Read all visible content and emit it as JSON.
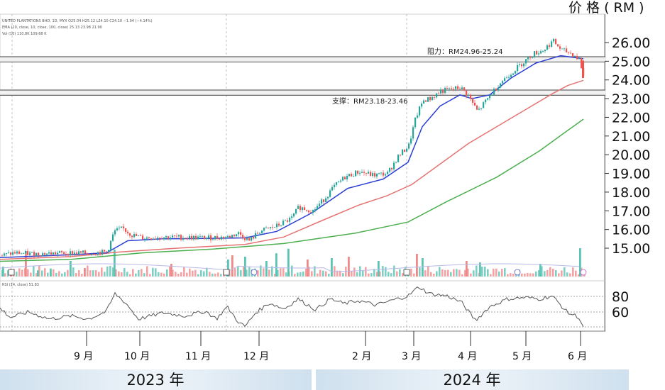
{
  "chart_data": {
    "type": "candlestick",
    "y_axis_title": "价 格 ( RM )",
    "price_ticks": [
      "26.00",
      "25.00",
      "24.00",
      "23.00",
      "22.00",
      "21.00",
      "20.00",
      "19.00",
      "18.00",
      "17.00",
      "16.00",
      "15.00"
    ],
    "ylim": [
      14.2,
      26.4
    ],
    "rsi_ticks": [
      "80",
      "60"
    ],
    "months": [
      "9 月",
      "10 月",
      "11 月",
      "12 月",
      "2 月",
      "3 月",
      "4 月",
      "5 月",
      "6 月"
    ],
    "years": [
      "2023 年",
      "2024 年"
    ],
    "resistance": {
      "label": "阻力：RM24.96-25.24",
      "low": 24.96,
      "high": 25.24
    },
    "support": {
      "label": "支撑：RM23.18-23.46",
      "low": 23.18,
      "high": 23.46
    },
    "header_lines": [
      "UNITED PLANTATIONS BHD, 1D, MYX  O25.04 H25.12 L24.10 C24.10 −1.04 (−4.14%)",
      "EMA (20, close, 10, close, 100, close)  25.13  23.98  21.90",
      "Vol (10)  110.8K  109.68 K"
    ],
    "rsi_header": "RSI (14, close)  51.83",
    "price_points": [
      [
        0,
        14.6
      ],
      [
        20,
        14.75
      ],
      [
        40,
        14.7
      ],
      [
        70,
        14.72
      ],
      [
        100,
        14.75
      ],
      [
        125,
        14.73
      ],
      [
        150,
        14.8
      ],
      [
        160,
        15.9
      ],
      [
        172,
        16.05
      ],
      [
        185,
        15.7
      ],
      [
        200,
        15.55
      ],
      [
        230,
        15.6
      ],
      [
        260,
        15.58
      ],
      [
        290,
        15.55
      ],
      [
        320,
        15.6
      ],
      [
        335,
        15.8
      ],
      [
        350,
        15.4
      ],
      [
        365,
        15.9
      ],
      [
        390,
        16.2
      ],
      [
        410,
        16.6
      ],
      [
        420,
        17.2
      ],
      [
        440,
        17.0
      ],
      [
        455,
        17.6
      ],
      [
        470,
        18.3
      ],
      [
        485,
        18.8
      ],
      [
        505,
        19.1
      ],
      [
        525,
        18.9
      ],
      [
        545,
        19.0
      ],
      [
        560,
        19.9
      ],
      [
        575,
        20.5
      ],
      [
        585,
        22.0
      ],
      [
        595,
        22.9
      ],
      [
        605,
        23.0
      ],
      [
        620,
        23.4
      ],
      [
        635,
        23.5
      ],
      [
        648,
        23.6
      ],
      [
        660,
        23.1
      ],
      [
        672,
        22.3
      ],
      [
        690,
        23.2
      ],
      [
        705,
        23.9
      ],
      [
        720,
        24.4
      ],
      [
        735,
        24.9
      ],
      [
        750,
        25.4
      ],
      [
        765,
        25.6
      ],
      [
        778,
        26.1
      ],
      [
        790,
        25.6
      ],
      [
        805,
        25.4
      ],
      [
        815,
        25.1
      ],
      [
        822,
        24.1
      ]
    ],
    "ema_fast": [
      [
        0,
        14.5
      ],
      [
        100,
        14.65
      ],
      [
        150,
        14.75
      ],
      [
        180,
        15.4
      ],
      [
        230,
        15.5
      ],
      [
        290,
        15.52
      ],
      [
        345,
        15.55
      ],
      [
        390,
        15.9
      ],
      [
        440,
        16.9
      ],
      [
        490,
        18.2
      ],
      [
        540,
        18.7
      ],
      [
        575,
        19.6
      ],
      [
        595,
        21.5
      ],
      [
        620,
        22.6
      ],
      [
        648,
        23.2
      ],
      [
        665,
        23.0
      ],
      [
        690,
        23.2
      ],
      [
        720,
        24.1
      ],
      [
        755,
        24.9
      ],
      [
        790,
        25.3
      ],
      [
        822,
        25.13
      ]
    ],
    "ema_mid": [
      [
        0,
        14.4
      ],
      [
        100,
        14.55
      ],
      [
        170,
        14.8
      ],
      [
        250,
        15.0
      ],
      [
        345,
        15.2
      ],
      [
        400,
        15.6
      ],
      [
        455,
        16.5
      ],
      [
        505,
        17.3
      ],
      [
        545,
        17.8
      ],
      [
        580,
        18.4
      ],
      [
        620,
        19.5
      ],
      [
        660,
        20.6
      ],
      [
        700,
        21.5
      ],
      [
        740,
        22.4
      ],
      [
        780,
        23.3
      ],
      [
        800,
        23.7
      ],
      [
        822,
        23.98
      ]
    ],
    "ema_slow": [
      [
        0,
        14.3
      ],
      [
        100,
        14.4
      ],
      [
        200,
        14.75
      ],
      [
        300,
        14.95
      ],
      [
        400,
        15.25
      ],
      [
        500,
        15.8
      ],
      [
        575,
        16.4
      ],
      [
        630,
        17.5
      ],
      [
        700,
        18.8
      ],
      [
        760,
        20.2
      ],
      [
        800,
        21.3
      ],
      [
        822,
        21.9
      ]
    ],
    "volume_bars": [
      [
        3,
        0.35,
        "g"
      ],
      [
        14,
        0.28,
        "r"
      ],
      [
        35,
        0.9,
        "r"
      ],
      [
        52,
        0.22,
        "g"
      ],
      [
        70,
        0.28,
        "g"
      ],
      [
        98,
        0.55,
        "g"
      ],
      [
        118,
        0.3,
        "r"
      ],
      [
        160,
        0.95,
        "g"
      ],
      [
        240,
        0.45,
        "r"
      ],
      [
        320,
        0.6,
        "g"
      ],
      [
        326,
        0.75,
        "r"
      ],
      [
        344,
        0.7,
        "g"
      ],
      [
        374,
        0.55,
        "g"
      ],
      [
        388,
        0.82,
        "g"
      ],
      [
        405,
        0.98,
        "g"
      ],
      [
        432,
        0.6,
        "r"
      ],
      [
        466,
        0.65,
        "g"
      ],
      [
        490,
        0.7,
        "r"
      ],
      [
        532,
        0.55,
        "g"
      ],
      [
        586,
        0.8,
        "r"
      ],
      [
        594,
        0.65,
        "g"
      ],
      [
        656,
        0.55,
        "r"
      ],
      [
        675,
        0.5,
        "g"
      ],
      [
        760,
        0.45,
        "g"
      ],
      [
        816,
        1.0,
        "g"
      ]
    ],
    "rsi_points": [
      [
        0,
        76
      ],
      [
        15,
        64
      ],
      [
        40,
        71
      ],
      [
        70,
        62
      ],
      [
        100,
        66
      ],
      [
        125,
        62
      ],
      [
        150,
        72
      ],
      [
        162,
        95
      ],
      [
        178,
        82
      ],
      [
        195,
        62
      ],
      [
        230,
        70
      ],
      [
        260,
        66
      ],
      [
        290,
        72
      ],
      [
        305,
        62
      ],
      [
        320,
        78
      ],
      [
        335,
        59
      ],
      [
        345,
        52
      ],
      [
        360,
        70
      ],
      [
        380,
        83
      ],
      [
        400,
        75
      ],
      [
        420,
        88
      ],
      [
        445,
        74
      ],
      [
        465,
        88
      ],
      [
        485,
        82
      ],
      [
        505,
        86
      ],
      [
        530,
        80
      ],
      [
        555,
        87
      ],
      [
        575,
        92
      ],
      [
        590,
        104
      ],
      [
        605,
        95
      ],
      [
        630,
        92
      ],
      [
        650,
        84
      ],
      [
        670,
        60
      ],
      [
        690,
        78
      ],
      [
        715,
        88
      ],
      [
        740,
        90
      ],
      [
        760,
        88
      ],
      [
        778,
        92
      ],
      [
        800,
        70
      ],
      [
        815,
        65
      ],
      [
        822,
        51
      ]
    ],
    "rsi_ylim": [
      48,
      108
    ]
  }
}
